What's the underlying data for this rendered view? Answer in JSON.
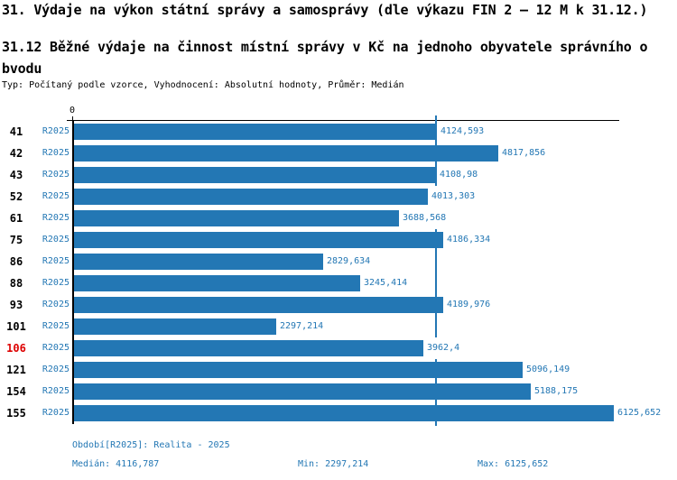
{
  "title": "31. Výdaje na výkon státní správy a samosprávy (dle výkazu FIN 2 – 12 M k 31.12.)",
  "subtitle": {
    "line1": "31.12 Běžné výdaje na činnost místní správy v Kč na jednoho obyvatele správního o",
    "line2": "bvodu"
  },
  "meta": "Typ: Počítaný podle vzorce, Vyhodnocení: Absolutní hodnoty, Průměr: Medián",
  "colors": {
    "bar_blue": "#2377b4",
    "text_blue": "#2377b4",
    "highlight_red": "#dd0000",
    "axis_black": "#000000",
    "background": "#ffffff"
  },
  "chart_data": {
    "type": "bar",
    "orientation": "horizontal",
    "series_label": "R2025",
    "categories": [
      "41",
      "42",
      "43",
      "52",
      "61",
      "75",
      "86",
      "88",
      "93",
      "101",
      "106",
      "121",
      "154",
      "155"
    ],
    "values": [
      4124.593,
      4817.856,
      4108.98,
      4013.303,
      3688.568,
      4186.334,
      2829.634,
      3245.414,
      4189.976,
      2297.214,
      3962.4,
      5096.149,
      5188.175,
      6125.652
    ],
    "value_labels": [
      "4124,593",
      "4817,856",
      "4108,98",
      "4013,303",
      "3688,568",
      "4186,334",
      "2829,634",
      "3245,414",
      "4189,976",
      "2297,214",
      "3962,4",
      "5096,149",
      "5188,175",
      "6125,652"
    ],
    "highlighted_category": "106",
    "x_axis_zero_label": "0",
    "xlim": [
      0,
      6200
    ],
    "median_line_value": 4116.787,
    "grid": "off",
    "legend": "none"
  },
  "footer": {
    "period": "Období[R2025]: Realita - 2025",
    "median": "Medián: 4116,787",
    "min": "Min: 2297,214",
    "max": "Max: 6125,652"
  }
}
